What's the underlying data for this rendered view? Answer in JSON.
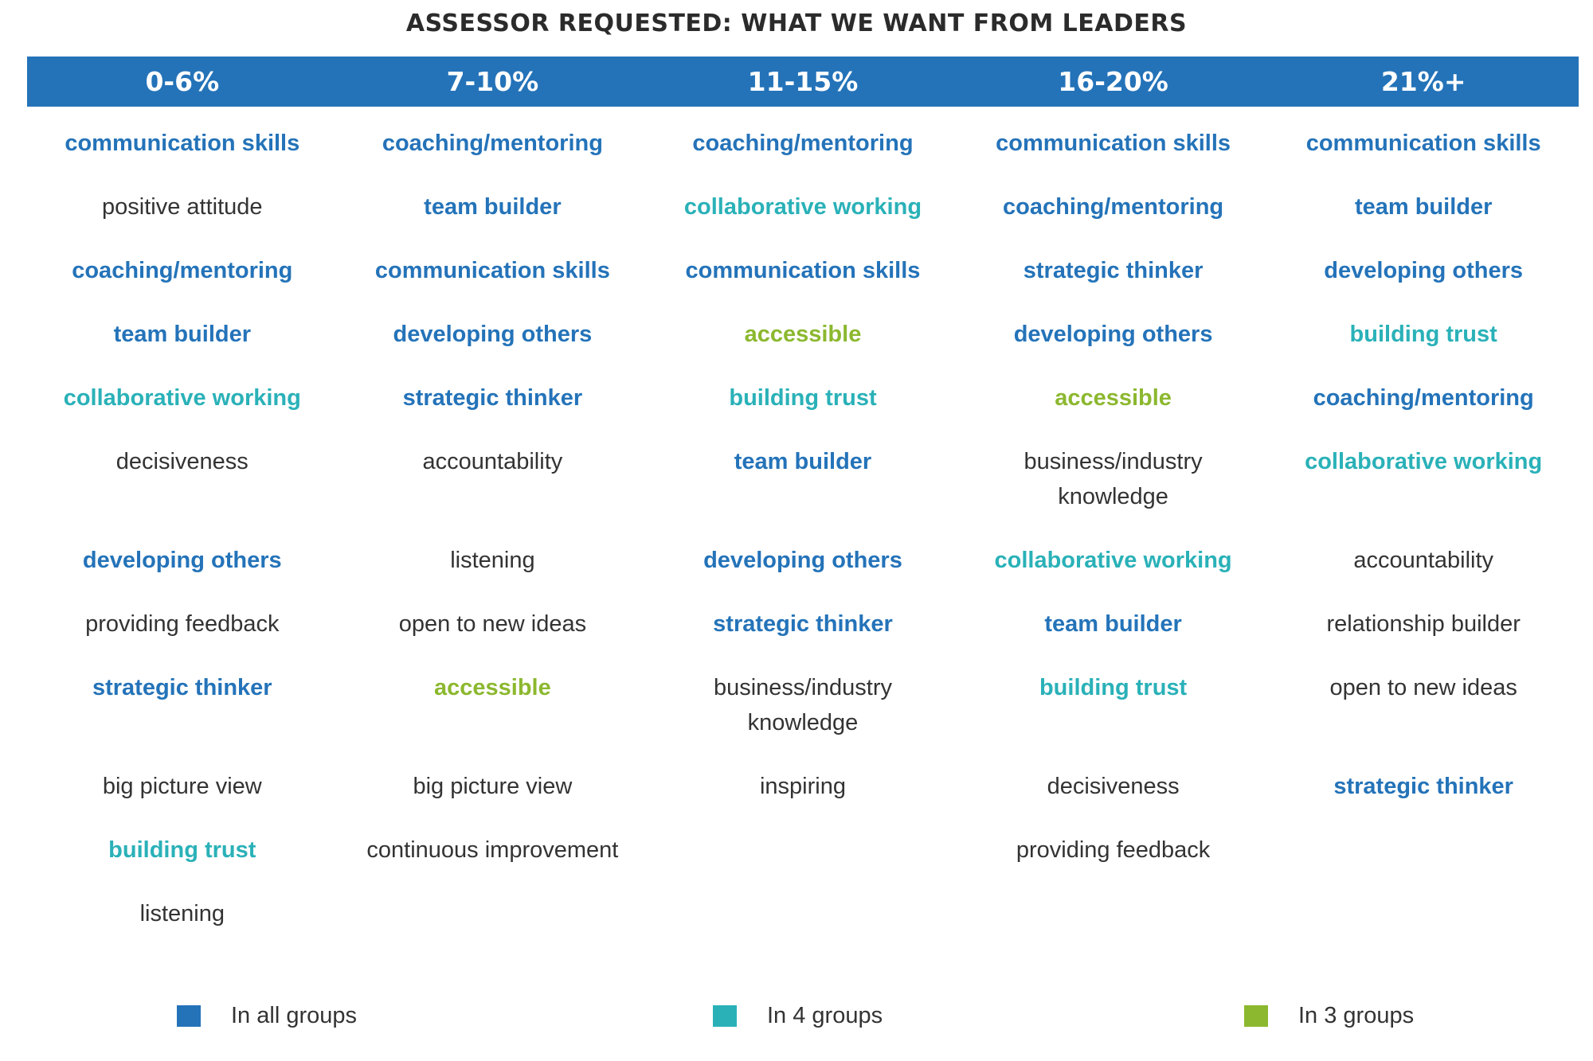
{
  "chart_data": {
    "type": "table",
    "title": "ASSESSOR REQUESTED: WHAT WE WANT FROM LEADERS",
    "columns": [
      {
        "header": "0-6%",
        "items": [
          {
            "text": "communication skills",
            "group": "all"
          },
          {
            "text": "positive attitude",
            "group": "none"
          },
          {
            "text": "coaching/mentoring",
            "group": "all"
          },
          {
            "text": "team builder",
            "group": "all"
          },
          {
            "text": "collaborative working",
            "group": "four"
          },
          {
            "text": "decisiveness",
            "group": "none"
          },
          {
            "text": "developing others",
            "group": "all"
          },
          {
            "text": "providing feedback",
            "group": "none"
          },
          {
            "text": "strategic thinker",
            "group": "all"
          },
          {
            "text": "big picture view",
            "group": "none"
          },
          {
            "text": "building trust",
            "group": "four"
          },
          {
            "text": "listening",
            "group": "none"
          }
        ]
      },
      {
        "header": "7-10%",
        "items": [
          {
            "text": "coaching/mentoring",
            "group": "all"
          },
          {
            "text": "team builder",
            "group": "all"
          },
          {
            "text": "communication skills",
            "group": "all"
          },
          {
            "text": "developing others",
            "group": "all"
          },
          {
            "text": "strategic thinker",
            "group": "all"
          },
          {
            "text": "accountability",
            "group": "none"
          },
          {
            "text": "listening",
            "group": "none"
          },
          {
            "text": "open to new ideas",
            "group": "none"
          },
          {
            "text": "accessible",
            "group": "three"
          },
          {
            "text": "big picture view",
            "group": "none"
          },
          {
            "text": "continuous improvement",
            "group": "none"
          }
        ]
      },
      {
        "header": "11-15%",
        "items": [
          {
            "text": "coaching/mentoring",
            "group": "all"
          },
          {
            "text": "collaborative working",
            "group": "four"
          },
          {
            "text": "communication skills",
            "group": "all"
          },
          {
            "text": "accessible",
            "group": "three"
          },
          {
            "text": "building trust",
            "group": "four"
          },
          {
            "text": "team builder",
            "group": "all"
          },
          {
            "text": "developing others",
            "group": "all"
          },
          {
            "text": "strategic thinker",
            "group": "all"
          },
          {
            "text": "business/industry knowledge",
            "group": "none"
          },
          {
            "text": "inspiring",
            "group": "none"
          }
        ]
      },
      {
        "header": "16-20%",
        "items": [
          {
            "text": "communication skills",
            "group": "all"
          },
          {
            "text": "coaching/mentoring",
            "group": "all"
          },
          {
            "text": "strategic thinker",
            "group": "all"
          },
          {
            "text": "developing others",
            "group": "all"
          },
          {
            "text": "accessible",
            "group": "three"
          },
          {
            "text": "business/industry knowledge",
            "group": "none"
          },
          {
            "text": "collaborative working",
            "group": "four"
          },
          {
            "text": "team builder",
            "group": "all"
          },
          {
            "text": "building trust",
            "group": "four"
          },
          {
            "text": "decisiveness",
            "group": "none"
          },
          {
            "text": "providing feedback",
            "group": "none"
          }
        ]
      },
      {
        "header": "21%+",
        "items": [
          {
            "text": "communication skills",
            "group": "all"
          },
          {
            "text": "team builder",
            "group": "all"
          },
          {
            "text": "developing others",
            "group": "all"
          },
          {
            "text": "building trust",
            "group": "four"
          },
          {
            "text": "coaching/mentoring",
            "group": "all"
          },
          {
            "text": "collaborative working",
            "group": "four"
          },
          {
            "text": "accountability",
            "group": "none"
          },
          {
            "text": "relationship builder",
            "group": "none"
          },
          {
            "text": "open to new ideas",
            "group": "none"
          },
          {
            "text": "strategic thinker",
            "group": "all"
          }
        ]
      }
    ],
    "legend": [
      {
        "label": "In all groups",
        "group": "all",
        "color": "#2473b9"
      },
      {
        "label": "In 4 groups",
        "group": "four",
        "color": "#2ab1b8"
      },
      {
        "label": "In 3 groups",
        "group": "three",
        "color": "#8cb82f"
      }
    ]
  },
  "colors": {
    "header_bar": "#2473b9",
    "all": "#2473b9",
    "four": "#2ab1b8",
    "three": "#8cb82f",
    "none": "#333333"
  }
}
